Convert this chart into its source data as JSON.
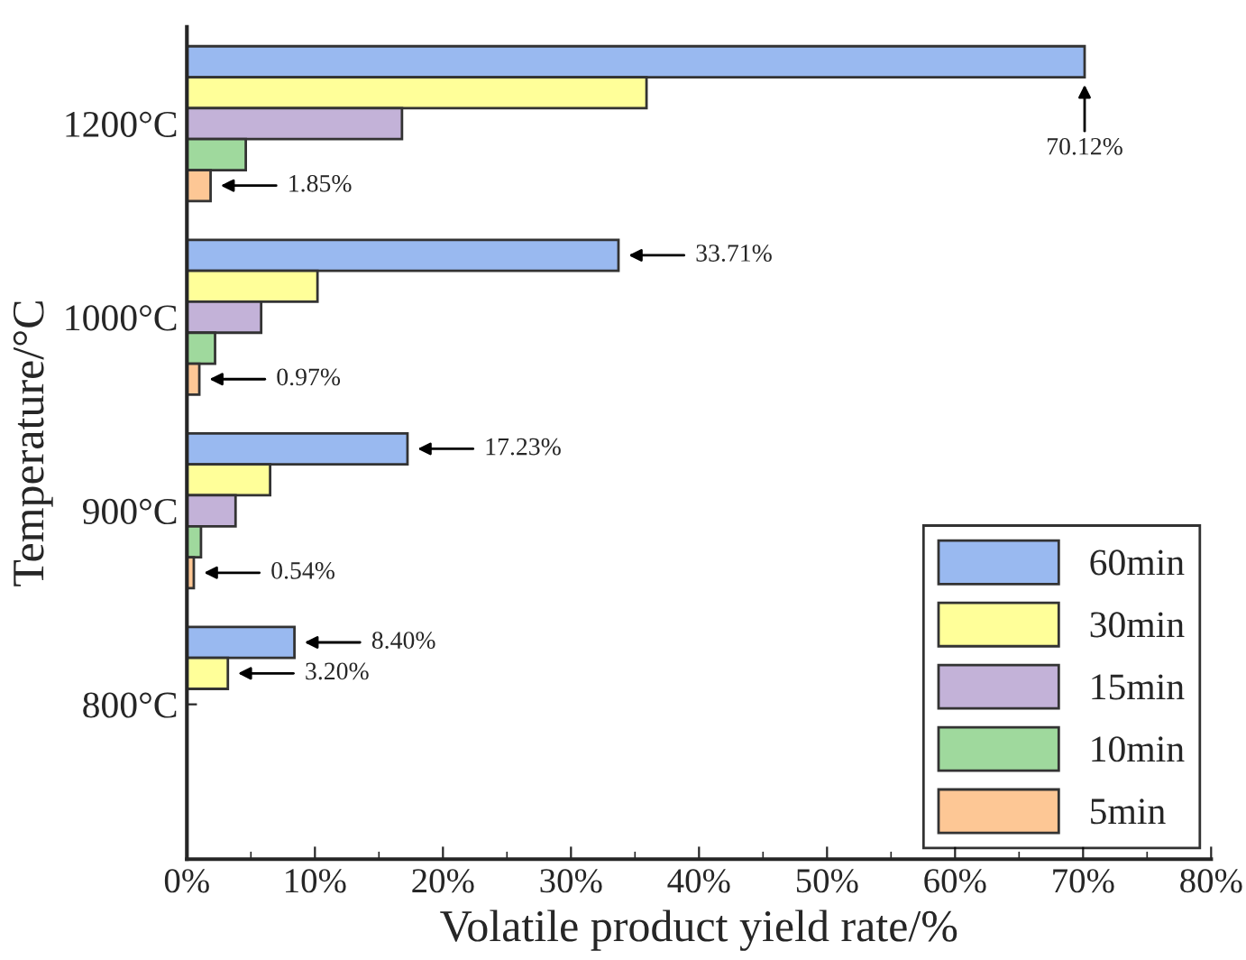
{
  "chart_data": {
    "type": "bar",
    "orientation": "horizontal",
    "xlabel": "Volatile product yield rate/%",
    "ylabel": "Temperature/°C",
    "categories": [
      "1200°C",
      "1000°C",
      "900°C",
      "800°C"
    ],
    "series": [
      {
        "name": "60min",
        "color": "#99b9f0",
        "values": [
          70.12,
          33.71,
          17.23,
          8.4
        ],
        "value_labels": [
          "70.12%",
          "33.71%",
          "17.23%",
          "8.40%"
        ]
      },
      {
        "name": "30min",
        "color": "#ffff99",
        "values": [
          35.9,
          10.2,
          6.5,
          3.2
        ],
        "value_labels": [
          null,
          null,
          null,
          "3.20%"
        ]
      },
      {
        "name": "15min",
        "color": "#c3b2d8",
        "values": [
          16.8,
          5.8,
          3.8,
          null
        ]
      },
      {
        "name": "10min",
        "color": "#9fd99d",
        "values": [
          4.6,
          2.2,
          1.1,
          null
        ]
      },
      {
        "name": "5min",
        "color": "#fdc795",
        "values": [
          1.85,
          0.97,
          0.54,
          null
        ],
        "value_labels": [
          "1.85%",
          "0.97%",
          "0.54%",
          null
        ]
      }
    ],
    "xlim": [
      0,
      80
    ],
    "xticks": [
      {
        "value": 0,
        "label": "0%"
      },
      {
        "value": 10,
        "label": "10%"
      },
      {
        "value": 20,
        "label": "20%"
      },
      {
        "value": 30,
        "label": "30%"
      },
      {
        "value": 40,
        "label": "40%"
      },
      {
        "value": 50,
        "label": "50%"
      },
      {
        "value": 60,
        "label": "60%"
      },
      {
        "value": 70,
        "label": "70%"
      },
      {
        "value": 80,
        "label": "80%"
      }
    ],
    "legend": "bottom right",
    "grid": false
  }
}
